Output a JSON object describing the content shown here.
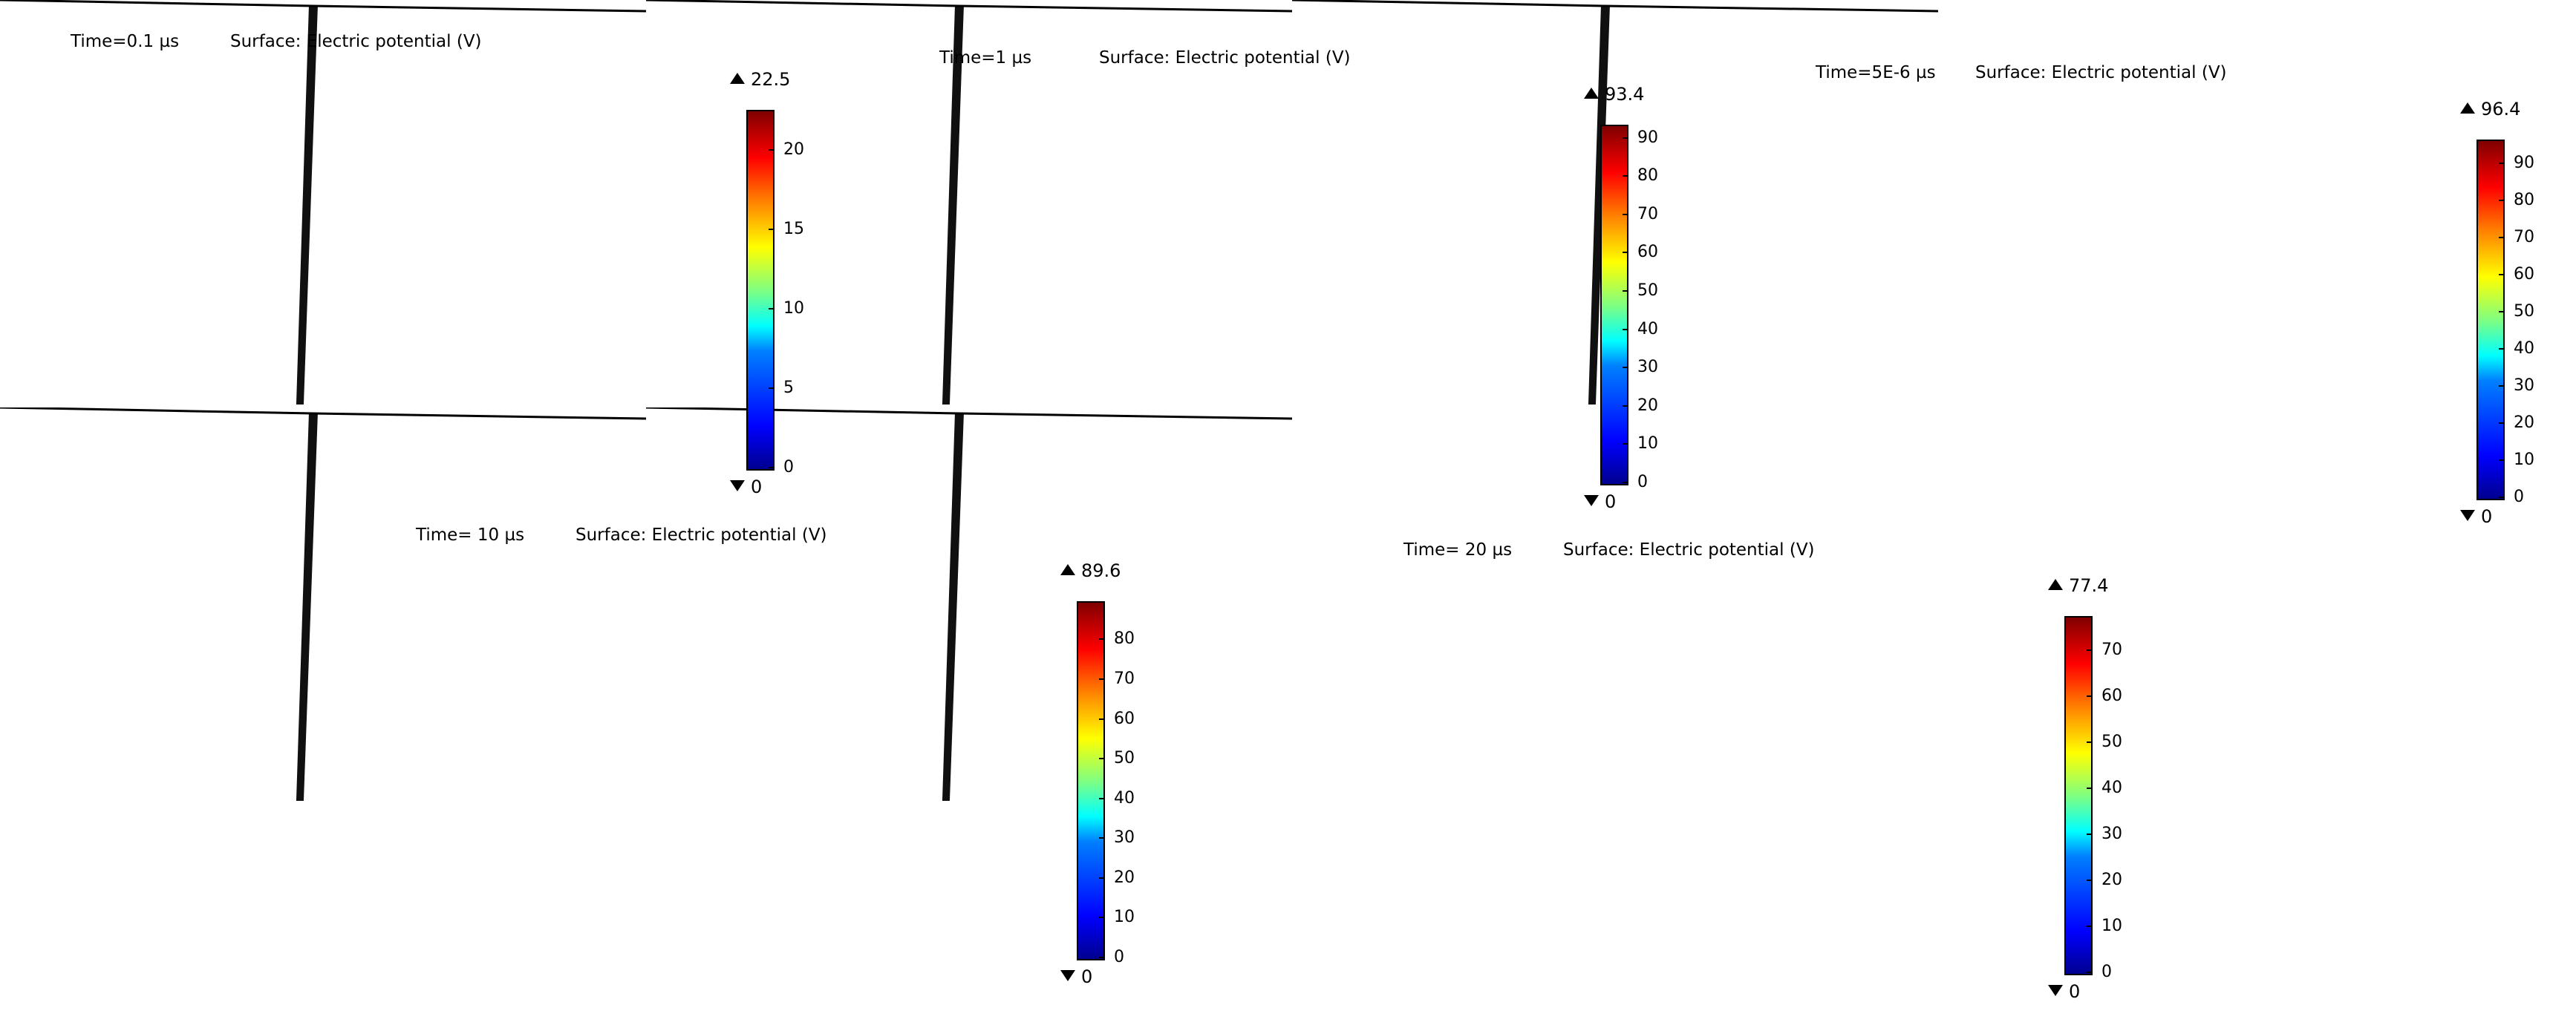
{
  "quantity_label": "Surface: Electric potential (V)",
  "colormap": [
    "#00008f",
    "#0000ff",
    "#0080ff",
    "#00ffff",
    "#80ff80",
    "#ffff00",
    "#ff8000",
    "#ff0000",
    "#800000"
  ],
  "panels": [
    {
      "time_label": "Time=0.1 µs",
      "max_label": "22.5",
      "min_label": "0",
      "max": 22.5,
      "spread": 0.12,
      "depth": 0.18,
      "ticks": [
        "0",
        "5",
        "10",
        "15",
        "20"
      ],
      "tick_values": [
        0,
        5,
        10,
        15,
        20
      ]
    },
    {
      "time_label": "Time=1 µs",
      "max_label": "93.4",
      "min_label": "0",
      "max": 93.4,
      "spread": 0.25,
      "depth": 0.45,
      "ticks": [
        "0",
        "10",
        "20",
        "30",
        "40",
        "50",
        "60",
        "70",
        "80",
        "90"
      ],
      "tick_values": [
        0,
        10,
        20,
        30,
        40,
        50,
        60,
        70,
        80,
        90
      ]
    },
    {
      "time_label": "Time=5E-6 µs",
      "max_label": "96.4",
      "min_label": "0",
      "max": 96.4,
      "spread": 0.4,
      "depth": 0.85,
      "ticks": [
        "0",
        "10",
        "20",
        "30",
        "40",
        "50",
        "60",
        "70",
        "80",
        "90"
      ],
      "tick_values": [
        0,
        10,
        20,
        30,
        40,
        50,
        60,
        70,
        80,
        90
      ]
    },
    {
      "time_label": "Time= 10 µs",
      "max_label": "89.6",
      "min_label": "0",
      "max": 89.6,
      "spread": 0.55,
      "depth": 1.0,
      "ticks": [
        "0",
        "10",
        "20",
        "30",
        "40",
        "50",
        "60",
        "70",
        "80"
      ],
      "tick_values": [
        0,
        10,
        20,
        30,
        40,
        50,
        60,
        70,
        80
      ]
    },
    {
      "time_label": "Time= 20 µs",
      "max_label": "77.4",
      "min_label": "0",
      "max": 77.4,
      "spread": 0.7,
      "depth": 1.0,
      "ticks": [
        "0",
        "10",
        "20",
        "30",
        "40",
        "50",
        "60",
        "70"
      ],
      "tick_values": [
        0,
        10,
        20,
        30,
        40,
        50,
        60,
        70
      ]
    }
  ]
}
